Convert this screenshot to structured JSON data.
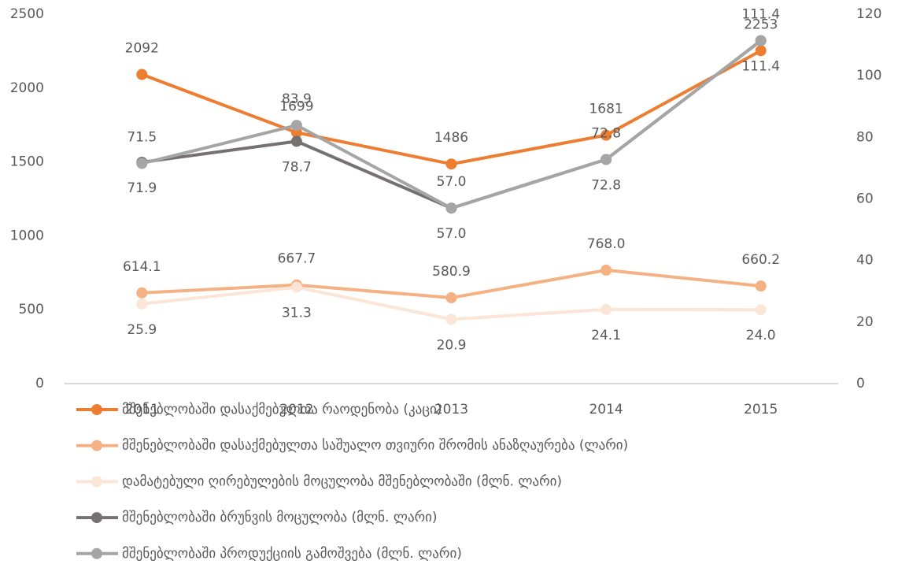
{
  "chart_data": {
    "type": "line",
    "categories": [
      "2011",
      "2012",
      "2013",
      "2014",
      "2015"
    ],
    "ylim": [
      0,
      2500
    ],
    "yticks": [
      0,
      500,
      1000,
      1500,
      2000,
      2500
    ],
    "y2lim": [
      0,
      120
    ],
    "y2ticks": [
      0,
      20,
      40,
      60,
      80,
      100,
      120
    ],
    "legend": "bottom",
    "series": [
      {
        "name": "მშენებლობაში დასაქმებულთა რაოდენობა (კაცი)",
        "color": "#ED7D31",
        "values": [
          2092,
          1699,
          1486,
          1681,
          2253
        ]
      },
      {
        "name": "მშენებლობაში დასაქმებულთა საშუალო თვიური შრომის ანაზღაურება  (ლარი)",
        "color": "#F4B183",
        "values": [
          614.1,
          667.7,
          580.9,
          768,
          660.2
        ],
        "value_labels": [
          "614.1",
          "667.7",
          "580.9",
          "768.0",
          "660.2"
        ]
      },
      {
        "name": "დამატებული ღირებულების მოცულობა მშენებლობაში (მლნ. ლარი)",
        "color": "#FBE5D6",
        "axis": "y2",
        "values": [
          25.9,
          31.3,
          20.9,
          24.1,
          24
        ],
        "value_labels": [
          "25.9",
          "31.3",
          "20.9",
          "24.1",
          "24.0"
        ]
      },
      {
        "name": "მშენებლობაში ბრუნვის მოცულობა (მლნ. ლარი)",
        "color": "#767171",
        "axis": "y2",
        "values": [
          71.9,
          78.7,
          57,
          72.8,
          111.4
        ],
        "value_labels": [
          "71.9",
          "78.7",
          "57.0",
          "72.8",
          "111.4"
        ]
      },
      {
        "name": "მშენებლობაში პროდუქციის გამოშვება  (მლნ. ლარი)",
        "color": "#A5A5A5",
        "axis": "y2",
        "values": [
          71.5,
          83.9,
          57,
          72.8,
          111.4
        ],
        "value_labels": [
          "71.5",
          "83.9",
          "57.0",
          "72.8",
          "111.4"
        ]
      }
    ]
  }
}
